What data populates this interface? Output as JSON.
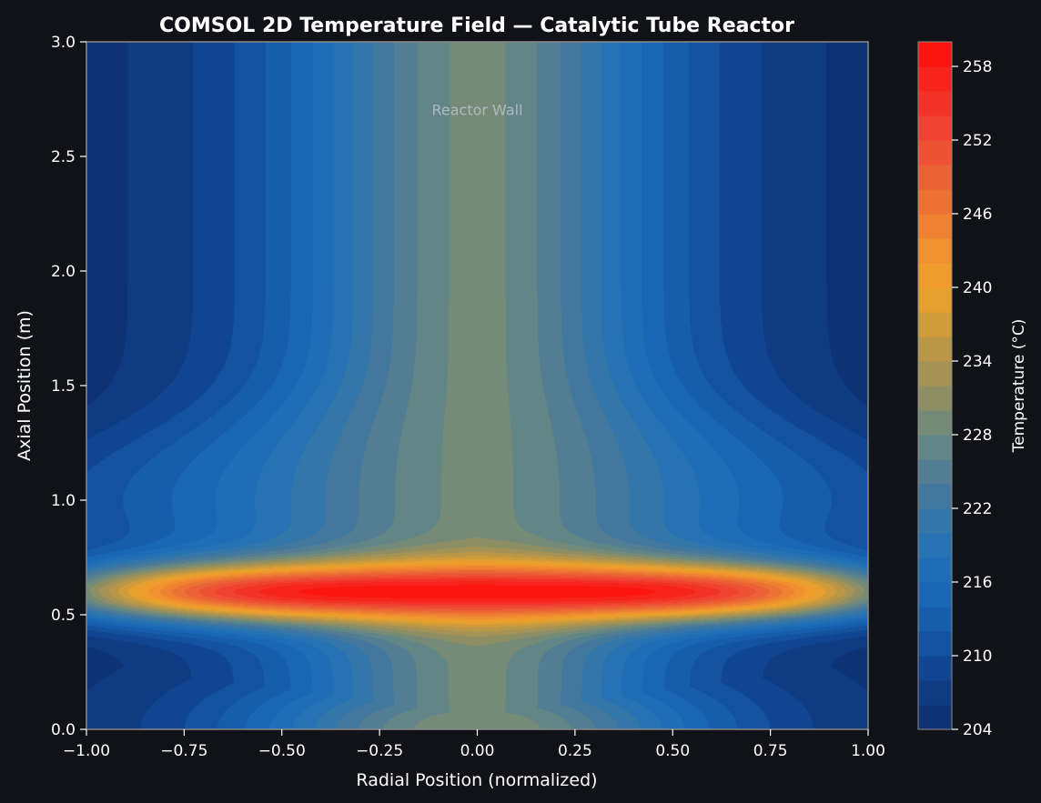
{
  "chart_data": {
    "type": "heatmap",
    "title": "COMSOL 2D Temperature Field — Catalytic Tube Reactor",
    "xlabel": "Radial Position (normalized)",
    "ylabel": "Axial Position (m)",
    "xlim": [
      -1.0,
      1.0
    ],
    "ylim": [
      0.0,
      3.0
    ],
    "x_ticks": [
      "−1.00",
      "−0.75",
      "−0.50",
      "−0.25",
      "0.00",
      "0.25",
      "0.50",
      "0.75",
      "1.00"
    ],
    "y_ticks": [
      "0.0",
      "0.5",
      "1.0",
      "1.5",
      "2.0",
      "2.5",
      "3.0"
    ],
    "annotation": {
      "text": "Reactor Wall",
      "x": 0.0,
      "y": 2.7
    },
    "colorbar": {
      "label": "Temperature (°C)",
      "range": [
        204,
        260
      ],
      "ticks": [
        "204",
        "210",
        "216",
        "222",
        "228",
        "234",
        "240",
        "246",
        "252",
        "258"
      ],
      "levels": 28
    },
    "field_model": {
      "base_center_c": 222.7,
      "base_wall_c": 205,
      "hotspot_peak_c": 259.5,
      "hotspot_axial_m": 0.6,
      "hotspot_axial_spread_m": 0.13,
      "hotspot_radial_spread": 0.55,
      "inlet_center_c": 230
    },
    "grid": false,
    "legend": "none"
  },
  "colors": {
    "background": "#111217",
    "axes_frame": "#8a8a8a",
    "annotation_text": "#b0b8c0",
    "colormap": [
      "#0d2f6e",
      "#0f3f8a",
      "#1458a6",
      "#1a6ab8",
      "#2a75b0",
      "#4a7898",
      "#6a8a80",
      "#9a8f5c",
      "#c49a40",
      "#f0a22a",
      "#f08a30",
      "#ea6a35",
      "#ee4a35",
      "#f42a22",
      "#ff0d0a"
    ]
  }
}
